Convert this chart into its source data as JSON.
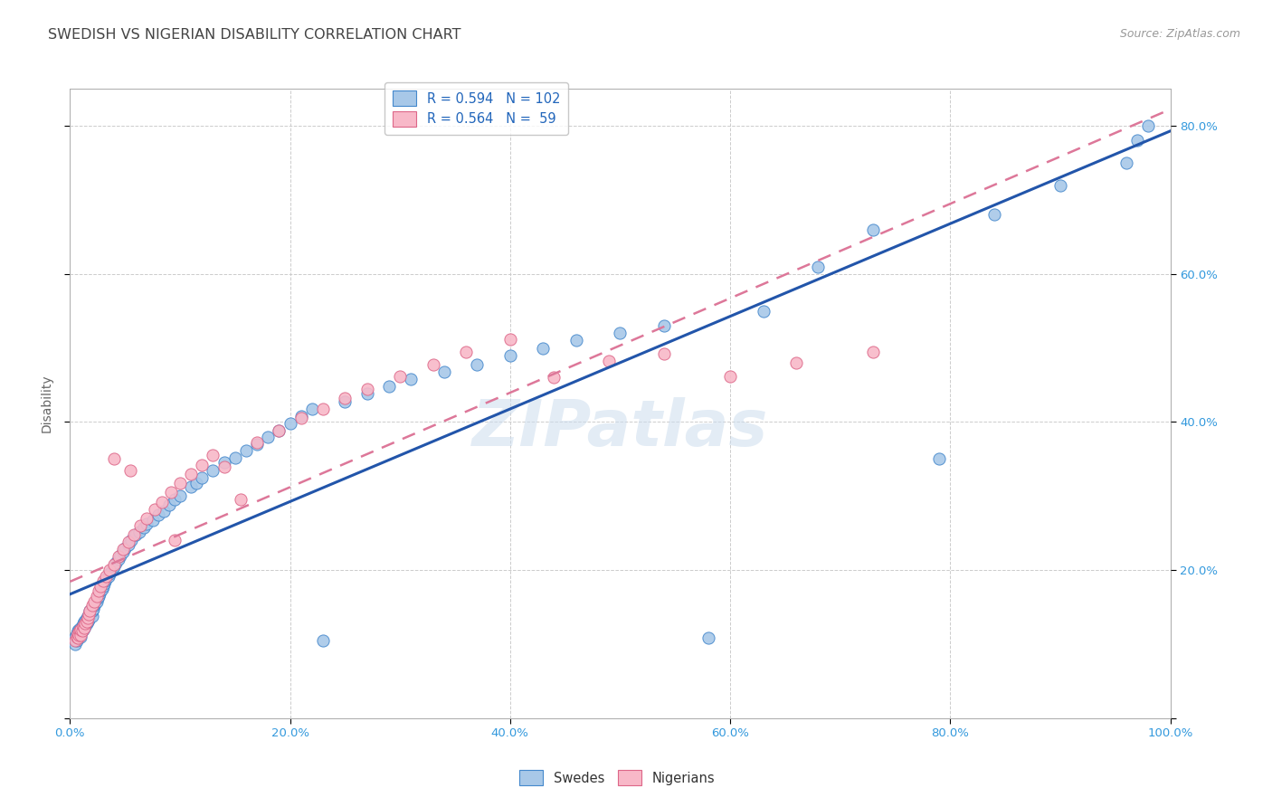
{
  "title": "SWEDISH VS NIGERIAN DISABILITY CORRELATION CHART",
  "source": "Source: ZipAtlas.com",
  "ylabel": "Disability",
  "xlim": [
    0,
    1.0
  ],
  "ylim": [
    0,
    0.85
  ],
  "xticks": [
    0.0,
    0.2,
    0.4,
    0.6,
    0.8,
    1.0
  ],
  "yticks": [
    0.0,
    0.2,
    0.4,
    0.6,
    0.8
  ],
  "xtick_labels": [
    "0.0%",
    "20.0%",
    "40.0%",
    "60.0%",
    "80.0%",
    "100.0%"
  ],
  "left_ytick_labels": [
    "",
    "",
    "",
    "",
    ""
  ],
  "right_ytick_labels": [
    "",
    "20.0%",
    "40.0%",
    "60.0%",
    "80.0%"
  ],
  "swedes_R": 0.594,
  "swedes_N": 102,
  "nigerians_R": 0.564,
  "nigerians_N": 59,
  "swede_color": "#A8C8E8",
  "nigerian_color": "#F8B8C8",
  "swede_edge_color": "#4488CC",
  "nigerian_edge_color": "#DD6688",
  "swede_line_color": "#2255AA",
  "nigerian_line_color": "#DD7799",
  "background_color": "#FFFFFF",
  "grid_color": "#CCCCCC",
  "title_color": "#444444",
  "watermark": "ZIPatlas",
  "swedes_x": [
    0.005,
    0.005,
    0.006,
    0.006,
    0.007,
    0.007,
    0.007,
    0.008,
    0.008,
    0.008,
    0.009,
    0.009,
    0.01,
    0.01,
    0.01,
    0.011,
    0.011,
    0.012,
    0.012,
    0.013,
    0.013,
    0.014,
    0.014,
    0.015,
    0.015,
    0.016,
    0.016,
    0.017,
    0.018,
    0.018,
    0.019,
    0.02,
    0.02,
    0.021,
    0.022,
    0.023,
    0.024,
    0.025,
    0.026,
    0.027,
    0.028,
    0.029,
    0.03,
    0.031,
    0.032,
    0.033,
    0.035,
    0.036,
    0.038,
    0.04,
    0.042,
    0.044,
    0.046,
    0.048,
    0.05,
    0.053,
    0.056,
    0.06,
    0.063,
    0.067,
    0.07,
    0.075,
    0.08,
    0.085,
    0.09,
    0.095,
    0.1,
    0.11,
    0.115,
    0.12,
    0.13,
    0.14,
    0.15,
    0.16,
    0.17,
    0.18,
    0.19,
    0.2,
    0.21,
    0.22,
    0.23,
    0.25,
    0.27,
    0.29,
    0.31,
    0.34,
    0.37,
    0.4,
    0.43,
    0.46,
    0.5,
    0.54,
    0.58,
    0.63,
    0.68,
    0.73,
    0.79,
    0.84,
    0.9,
    0.96,
    0.97,
    0.98
  ],
  "swedes_y": [
    0.1,
    0.11,
    0.105,
    0.115,
    0.108,
    0.112,
    0.118,
    0.11,
    0.115,
    0.12,
    0.112,
    0.118,
    0.11,
    0.115,
    0.122,
    0.118,
    0.125,
    0.12,
    0.128,
    0.122,
    0.13,
    0.125,
    0.132,
    0.128,
    0.135,
    0.13,
    0.138,
    0.133,
    0.14,
    0.145,
    0.142,
    0.138,
    0.145,
    0.148,
    0.152,
    0.155,
    0.158,
    0.162,
    0.165,
    0.168,
    0.172,
    0.175,
    0.178,
    0.182,
    0.185,
    0.188,
    0.192,
    0.195,
    0.2,
    0.205,
    0.21,
    0.215,
    0.22,
    0.225,
    0.23,
    0.235,
    0.24,
    0.248,
    0.252,
    0.258,
    0.262,
    0.268,
    0.275,
    0.28,
    0.288,
    0.295,
    0.3,
    0.312,
    0.318,
    0.325,
    0.335,
    0.345,
    0.352,
    0.362,
    0.37,
    0.38,
    0.388,
    0.398,
    0.408,
    0.418,
    0.105,
    0.428,
    0.438,
    0.448,
    0.458,
    0.468,
    0.478,
    0.49,
    0.5,
    0.51,
    0.52,
    0.53,
    0.108,
    0.55,
    0.61,
    0.66,
    0.35,
    0.68,
    0.72,
    0.75,
    0.78,
    0.8
  ],
  "nigerians_x": [
    0.005,
    0.006,
    0.007,
    0.007,
    0.008,
    0.009,
    0.01,
    0.01,
    0.011,
    0.012,
    0.013,
    0.014,
    0.015,
    0.016,
    0.017,
    0.018,
    0.02,
    0.022,
    0.024,
    0.026,
    0.028,
    0.03,
    0.033,
    0.036,
    0.04,
    0.044,
    0.048,
    0.053,
    0.058,
    0.064,
    0.07,
    0.077,
    0.084,
    0.092,
    0.1,
    0.11,
    0.12,
    0.13,
    0.14,
    0.155,
    0.17,
    0.19,
    0.055,
    0.21,
    0.23,
    0.25,
    0.27,
    0.3,
    0.33,
    0.36,
    0.4,
    0.44,
    0.49,
    0.54,
    0.6,
    0.66,
    0.73,
    0.04,
    0.095
  ],
  "nigerians_y": [
    0.105,
    0.11,
    0.108,
    0.115,
    0.112,
    0.118,
    0.112,
    0.12,
    0.118,
    0.125,
    0.122,
    0.128,
    0.13,
    0.135,
    0.14,
    0.145,
    0.152,
    0.158,
    0.165,
    0.172,
    0.178,
    0.185,
    0.192,
    0.2,
    0.208,
    0.218,
    0.228,
    0.238,
    0.248,
    0.26,
    0.27,
    0.282,
    0.292,
    0.305,
    0.318,
    0.33,
    0.342,
    0.355,
    0.34,
    0.295,
    0.372,
    0.388,
    0.335,
    0.405,
    0.418,
    0.432,
    0.445,
    0.462,
    0.478,
    0.495,
    0.512,
    0.46,
    0.482,
    0.492,
    0.462,
    0.48,
    0.495,
    0.35,
    0.24
  ]
}
